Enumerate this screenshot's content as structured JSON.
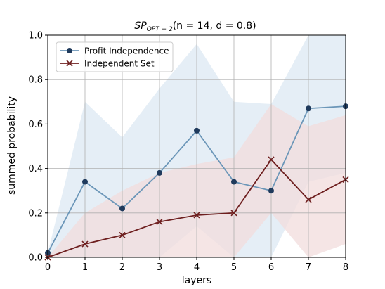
{
  "chart_data": {
    "type": "line",
    "title_main": "SP",
    "title_sub": "OPT − 2",
    "title_params": "(n = 14, d = 0.8)",
    "xlabel": "layers",
    "ylabel": "summed probability",
    "xlim": [
      0,
      8
    ],
    "ylim": [
      0,
      1.0
    ],
    "x": [
      0,
      1,
      2,
      3,
      4,
      5,
      6,
      7,
      8
    ],
    "xticks": [
      0,
      1,
      2,
      3,
      4,
      5,
      6,
      7,
      8
    ],
    "xtick_labels": [
      "0",
      "1",
      "2",
      "3",
      "4",
      "5",
      "6",
      "7",
      "8"
    ],
    "yticks": [
      0.0,
      0.2,
      0.4,
      0.6,
      0.8,
      1.0
    ],
    "ytick_labels": [
      "0.0",
      "0.2",
      "0.4",
      "0.6",
      "0.8",
      "1.0"
    ],
    "grid": true,
    "legend_position": "upper-left",
    "series": [
      {
        "name": "Profit Independence",
        "marker": "circle",
        "line_color": "#6b96b8",
        "marker_color": "#1f3a5c",
        "band_color": "#dce8f3",
        "values": [
          0.02,
          0.34,
          0.22,
          0.38,
          0.57,
          0.34,
          0.3,
          0.67,
          0.68
        ],
        "band_upper": [
          0.02,
          0.7,
          0.54,
          0.76,
          0.96,
          0.7,
          0.69,
          1.0,
          1.0
        ],
        "band_lower": [
          0.0,
          0.0,
          0.0,
          0.0,
          0.14,
          0.0,
          0.0,
          0.34,
          0.38
        ]
      },
      {
        "name": "Independent Set",
        "marker": "x",
        "line_color": "#6e1f1f",
        "marker_color": "#6e1f1f",
        "band_color": "#f2dcdc",
        "values": [
          0.0,
          0.06,
          0.1,
          0.16,
          0.19,
          0.2,
          0.44,
          0.26,
          0.35
        ],
        "band_upper": [
          0.0,
          0.2,
          0.3,
          0.38,
          0.42,
          0.45,
          0.69,
          0.59,
          0.64
        ],
        "band_lower": [
          0.0,
          0.0,
          0.0,
          0.0,
          0.0,
          0.0,
          0.2,
          0.0,
          0.06
        ]
      }
    ]
  }
}
